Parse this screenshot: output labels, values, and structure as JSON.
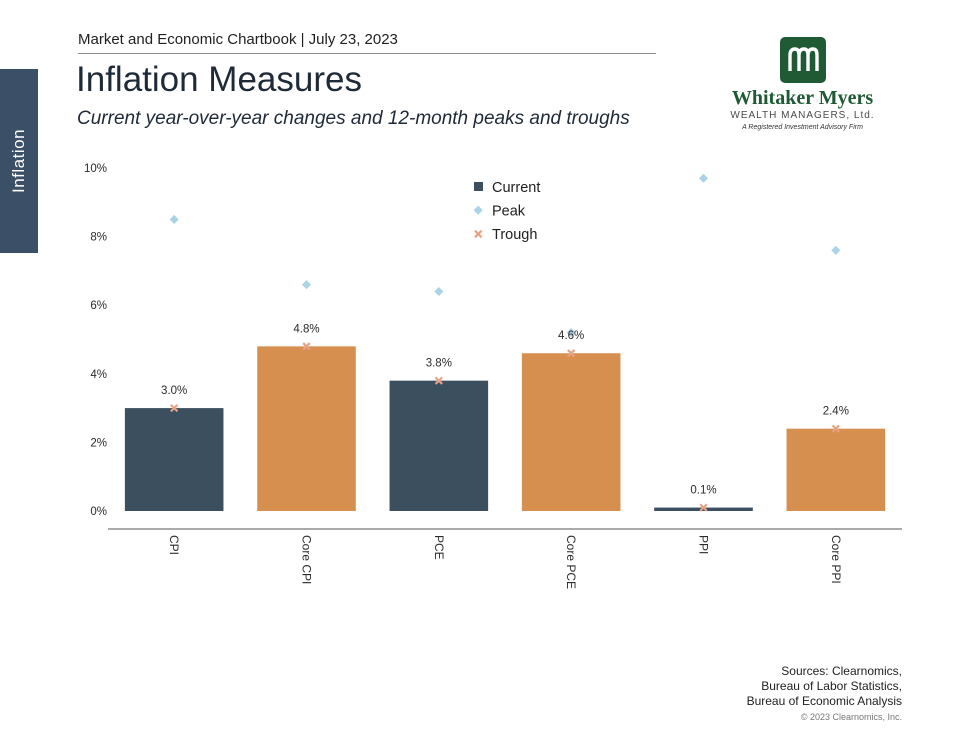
{
  "side_tab": {
    "label": "Inflation"
  },
  "header": {
    "chartbook": "Market and Economic Chartbook | July 23, 2023",
    "title": "Inflation Measures",
    "subtitle": "Current year-over-year changes and 12-month peaks and troughs"
  },
  "logo": {
    "name": "Whitaker Myers",
    "tagline": "WEALTH MANAGERS, Ltd.",
    "sub": "A Registered Investment Advisory Firm"
  },
  "colors": {
    "navy": "#3b4f5f",
    "orange": "#d68f4e",
    "peak": "#a9d3e6",
    "trough": "#e8a283",
    "side_tab": "#3b4f66",
    "logo_green": "#1f5a34"
  },
  "chart_data": {
    "type": "bar",
    "categories": [
      "CPI",
      "Core CPI",
      "PCE",
      "Core PCE",
      "PPI",
      "Core PPI"
    ],
    "series": [
      {
        "name": "Current",
        "values": [
          3.0,
          4.8,
          3.8,
          4.6,
          0.1,
          2.4
        ]
      },
      {
        "name": "Peak",
        "values": [
          8.5,
          6.6,
          6.4,
          5.2,
          9.7,
          7.6
        ]
      },
      {
        "name": "Trough",
        "values": [
          3.0,
          4.8,
          3.8,
          4.6,
          0.1,
          2.4
        ]
      }
    ],
    "data_labels": [
      "3.0%",
      "4.8%",
      "3.8%",
      "4.6%",
      "0.1%",
      "2.4%"
    ],
    "bar_colors": [
      "#3b4f5f",
      "#d68f4e",
      "#3b4f5f",
      "#d68f4e",
      "#3b4f5f",
      "#d68f4e"
    ],
    "y_ticks": [
      "0%",
      "2%",
      "4%",
      "6%",
      "8%",
      "10%"
    ],
    "ylim": [
      0,
      10
    ],
    "grid": false,
    "legend_position": "top-center"
  },
  "footer": {
    "sources": [
      "Sources: Clearnomics,",
      "Bureau of Labor Statistics,",
      "Bureau of Economic Analysis"
    ],
    "copyright": "© 2023 Clearnomics, Inc."
  }
}
